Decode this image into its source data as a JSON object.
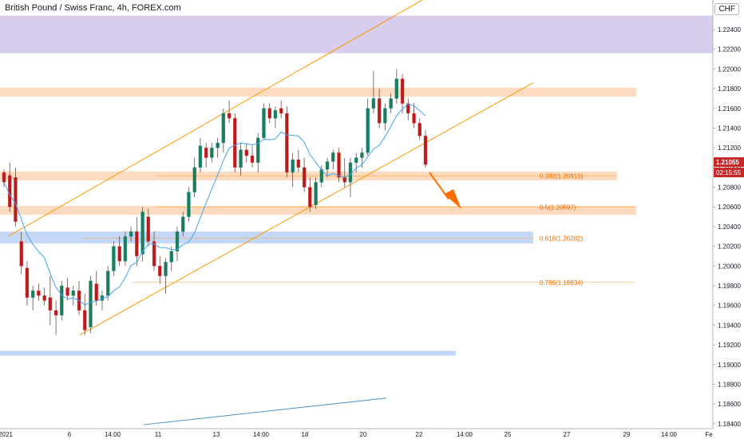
{
  "header": {
    "title": "British Pound / Swiss Franc, 4h, FOREX.com",
    "currency": "CHF"
  },
  "chart_data": {
    "type": "candlestick",
    "ylim": [
      1.1835,
      1.227
    ],
    "y_ticks": [
      "1.22400",
      "1.22200",
      "1.22000",
      "1.21800",
      "1.21600",
      "1.21400",
      "1.21200",
      "1.21000",
      "1.20800",
      "1.20600",
      "1.20400",
      "1.20200",
      "1.20000",
      "1.19800",
      "1.19600",
      "1.19400",
      "1.19200",
      "1.19000",
      "1.18800",
      "1.18600",
      "1.18400"
    ],
    "x_ticks": [
      "2021",
      "6",
      "14:00",
      "11",
      "13",
      "14:00",
      "18",
      "20",
      "22",
      "14:00",
      "25",
      "27",
      "29",
      "14:00",
      "Fe"
    ],
    "price_label": "1.21055",
    "countdown_label": "02:15:55",
    "fib_levels": [
      {
        "label": "0.382(1.20913)",
        "value": 1.20913
      },
      {
        "label": "0.5(1.20597)",
        "value": 1.20597
      },
      {
        "label": "0.618(1.20282)",
        "value": 1.20282
      },
      {
        "label": "0.786(1.19834)",
        "value": 1.19834
      }
    ],
    "zones": [
      {
        "name": "purple-zone",
        "low": 1.2216,
        "high": 1.2254,
        "color": "#d1c4e9"
      },
      {
        "name": "orange-zone-top",
        "low": 1.2172,
        "high": 1.2181,
        "color": "#fbd5b5"
      },
      {
        "name": "orange-zone-382",
        "low": 1.2087,
        "high": 1.2096,
        "color": "#fbd5b5"
      },
      {
        "name": "orange-zone-05",
        "low": 1.2052,
        "high": 1.2061,
        "color": "#fbd5b5"
      },
      {
        "name": "blue-zone-618",
        "low": 1.2023,
        "high": 1.2035,
        "color": "#bbd0f5"
      },
      {
        "name": "blue-zone-bottom",
        "low": 1.1909,
        "high": 1.1914,
        "color": "#bbd0f5"
      }
    ],
    "candles": [
      [
        1.2095,
        1.2098,
        1.208,
        1.2085
      ],
      [
        1.2092,
        1.2105,
        1.2055,
        1.206
      ],
      [
        1.209,
        1.21,
        1.204,
        1.2045
      ],
      [
        1.2025,
        1.2035,
        1.1992,
        1.2
      ],
      [
        1.1998,
        1.2005,
        1.196,
        1.1968
      ],
      [
        1.1968,
        1.198,
        1.1955,
        1.1975
      ],
      [
        1.1975,
        1.1982,
        1.1965,
        1.197
      ],
      [
        1.197,
        1.1978,
        1.196,
        1.1965
      ],
      [
        1.1968,
        1.199,
        1.194,
        1.1955
      ],
      [
        1.1955,
        1.1965,
        1.193,
        1.195
      ],
      [
        1.195,
        1.1985,
        1.1945,
        1.198
      ],
      [
        1.1978,
        1.1988,
        1.1965,
        1.197
      ],
      [
        1.197,
        1.198,
        1.196,
        1.1975
      ],
      [
        1.1975,
        1.1985,
        1.195,
        1.1955
      ],
      [
        1.1955,
        1.1972,
        1.193,
        1.1935
      ],
      [
        1.1938,
        1.199,
        1.1932,
        1.1985
      ],
      [
        1.1982,
        1.1995,
        1.196,
        1.1965
      ],
      [
        1.1965,
        1.1975,
        1.1955,
        1.197
      ],
      [
        1.197,
        1.2,
        1.1965,
        1.1995
      ],
      [
        1.1995,
        1.2025,
        1.199,
        1.202
      ],
      [
        1.202,
        1.203,
        1.2,
        1.2005
      ],
      [
        1.2005,
        1.2035,
        1.2,
        1.203
      ],
      [
        1.203,
        1.204,
        1.2025,
        1.2035
      ],
      [
        1.2035,
        1.205,
        1.2,
        1.201
      ],
      [
        1.2012,
        1.206,
        1.2005,
        1.2055
      ],
      [
        1.205,
        1.2058,
        1.202,
        1.2025
      ],
      [
        1.2025,
        1.2035,
        1.1995,
        1.2
      ],
      [
        1.2,
        1.201,
        1.1982,
        1.199
      ],
      [
        1.199,
        1.2008,
        1.1972,
        1.2004
      ],
      [
        1.2004,
        1.202,
        1.1995,
        1.2015
      ],
      [
        1.2015,
        1.204,
        1.2005,
        1.2035
      ],
      [
        1.2035,
        1.2055,
        1.203,
        1.205
      ],
      [
        1.205,
        1.208,
        1.2045,
        1.2075
      ],
      [
        1.2075,
        1.211,
        1.207,
        1.21
      ],
      [
        1.21,
        1.213,
        1.2095,
        1.2122
      ],
      [
        1.212,
        1.2125,
        1.21,
        1.211
      ],
      [
        1.211,
        1.2125,
        1.2105,
        1.212
      ],
      [
        1.212,
        1.213,
        1.211,
        1.2125
      ],
      [
        1.2125,
        1.216,
        1.2115,
        1.2155
      ],
      [
        1.2155,
        1.2168,
        1.2145,
        1.215
      ],
      [
        1.215,
        1.2155,
        1.2095,
        1.21
      ],
      [
        1.21,
        1.2125,
        1.2092,
        1.2118
      ],
      [
        1.2118,
        1.2125,
        1.2105,
        1.2112
      ],
      [
        1.2112,
        1.2122,
        1.21,
        1.2105
      ],
      [
        1.2105,
        1.2135,
        1.2095,
        1.213
      ],
      [
        1.213,
        1.2165,
        1.2128,
        1.216
      ],
      [
        1.216,
        1.2165,
        1.2145,
        1.215
      ],
      [
        1.215,
        1.2162,
        1.214,
        1.2158
      ],
      [
        1.216,
        1.2168,
        1.215,
        1.2155
      ],
      [
        1.2155,
        1.2162,
        1.209,
        1.2095
      ],
      [
        1.2095,
        1.2115,
        1.208,
        1.2108
      ],
      [
        1.2108,
        1.2118,
        1.2095,
        1.21
      ],
      [
        1.21,
        1.211,
        1.2075,
        1.208
      ],
      [
        1.208,
        1.209,
        1.2055,
        1.206
      ],
      [
        1.2062,
        1.209,
        1.2058,
        1.2085
      ],
      [
        1.2085,
        1.2102,
        1.208,
        1.2098
      ],
      [
        1.2098,
        1.211,
        1.209,
        1.2106
      ],
      [
        1.2106,
        1.2118,
        1.2098,
        1.2115
      ],
      [
        1.2115,
        1.212,
        1.2085,
        1.209
      ],
      [
        1.209,
        1.211,
        1.208,
        1.2085
      ],
      [
        1.2085,
        1.211,
        1.207,
        1.2105
      ],
      [
        1.2105,
        1.2115,
        1.2095,
        1.211
      ],
      [
        1.211,
        1.212,
        1.21,
        1.2115
      ],
      [
        1.2115,
        1.217,
        1.2112,
        1.216
      ],
      [
        1.216,
        1.2198,
        1.2155,
        1.217
      ],
      [
        1.217,
        1.218,
        1.214,
        1.2145
      ],
      [
        1.2145,
        1.2165,
        1.2138,
        1.216
      ],
      [
        1.216,
        1.2175,
        1.2155,
        1.217
      ],
      [
        1.217,
        1.22,
        1.2165,
        1.219
      ],
      [
        1.219,
        1.2195,
        1.2155,
        1.2165
      ],
      [
        1.2165,
        1.217,
        1.2148,
        1.2155
      ],
      [
        1.2155,
        1.2165,
        1.214,
        1.2145
      ],
      [
        1.2145,
        1.215,
        1.2128,
        1.2132
      ],
      [
        1.2132,
        1.2138,
        1.21,
        1.2103
      ]
    ]
  }
}
